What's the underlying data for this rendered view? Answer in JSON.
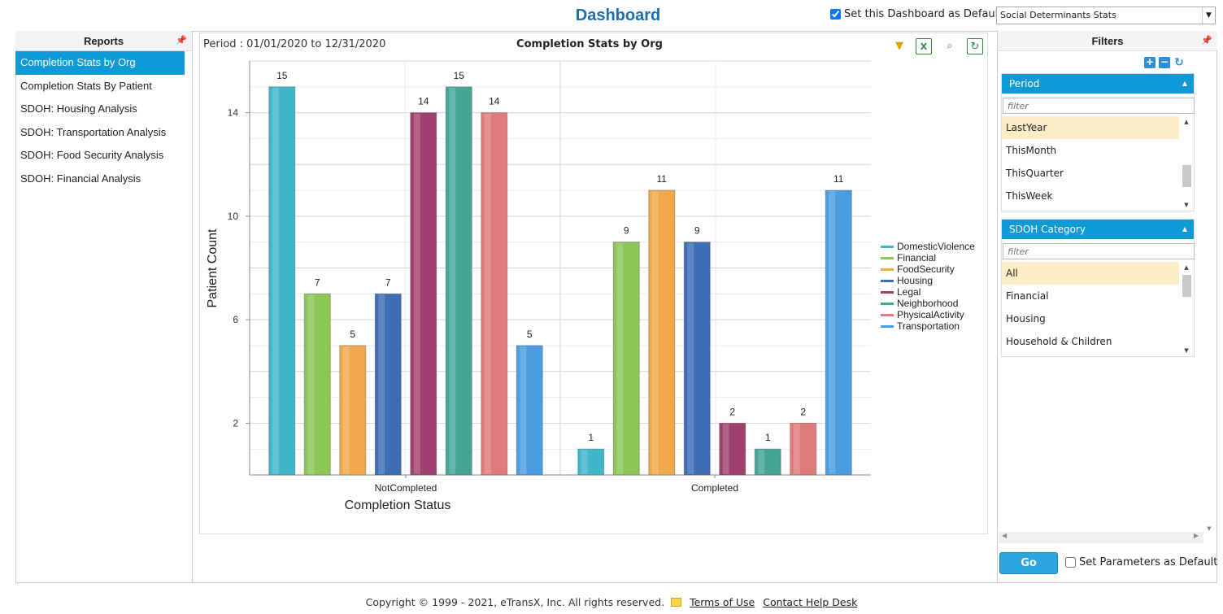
{
  "header": {
    "title": "Dashboard",
    "default_checkbox_label": "Set this Dashboard as Default",
    "dashboard_select_value": "Social Determinants Stats"
  },
  "reports": {
    "heading": "Reports",
    "items": [
      {
        "label": "Completion Stats by Org",
        "active": true
      },
      {
        "label": "Completion Stats By Patient",
        "active": false
      },
      {
        "label": "SDOH: Housing Analysis",
        "active": false
      },
      {
        "label": "SDOH: Transportation Analysis",
        "active": false
      },
      {
        "label": "SDOH: Food Security Analysis",
        "active": false
      },
      {
        "label": "SDOH: Financial Analysis",
        "active": false
      }
    ]
  },
  "report_view": {
    "period_label": "Period : 01/01/2020 to 12/31/2020",
    "tool_icons": [
      "filter-icon",
      "excel-export-icon",
      "zoom-icon",
      "refresh-icon"
    ]
  },
  "chart_data": {
    "type": "bar",
    "title": "Completion Stats by Org",
    "xlabel": "Completion Status",
    "ylabel": "Patient Count",
    "categories": [
      "NotCompleted",
      "Completed"
    ],
    "ylim": [
      0,
      16
    ],
    "yticks": [
      2,
      6,
      10,
      14
    ],
    "grid": true,
    "legend_position": "right",
    "series": [
      {
        "name": "DomesticViolence",
        "color": "#3fb6c9",
        "values": [
          15,
          1
        ]
      },
      {
        "name": "Financial",
        "color": "#8cc656",
        "values": [
          7,
          9
        ]
      },
      {
        "name": "FoodSecurity",
        "color": "#f2a94b",
        "values": [
          5,
          11
        ]
      },
      {
        "name": "Housing",
        "color": "#3c6db5",
        "values": [
          7,
          9
        ]
      },
      {
        "name": "Legal",
        "color": "#a0406e",
        "values": [
          14,
          2
        ]
      },
      {
        "name": "Neighborhood",
        "color": "#44a596",
        "values": [
          15,
          1
        ]
      },
      {
        "name": "PhysicalActivity",
        "color": "#e07b7b",
        "values": [
          14,
          2
        ]
      },
      {
        "name": "Transportation",
        "color": "#4a9de0",
        "values": [
          5,
          11
        ]
      }
    ]
  },
  "filters": {
    "heading": "Filters",
    "groups": [
      {
        "title": "Period",
        "filter_placeholder": "filter",
        "items": [
          {
            "label": "LastYear",
            "selected": true
          },
          {
            "label": "ThisMonth",
            "selected": false
          },
          {
            "label": "ThisQuarter",
            "selected": false
          },
          {
            "label": "ThisWeek",
            "selected": false
          }
        ]
      },
      {
        "title": "SDOH Category",
        "filter_placeholder": "filter",
        "items": [
          {
            "label": "All",
            "selected": true
          },
          {
            "label": "Financial",
            "selected": false
          },
          {
            "label": "Housing",
            "selected": false
          },
          {
            "label": "Household & Children",
            "selected": false
          }
        ]
      }
    ],
    "go_label": "Go",
    "param_default_label": "Set Parameters as Default"
  },
  "footer": {
    "copyright": "Copyright © 1999 - 2021, eTransX, Inc. All rights reserved.",
    "terms_link": "Terms of Use",
    "help_link": "Contact Help Desk"
  }
}
